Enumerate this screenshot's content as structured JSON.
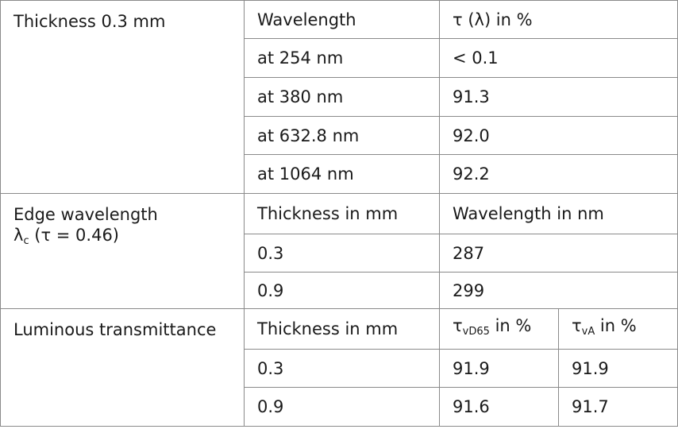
{
  "sections": [
    {
      "label": "Thickness 0.3 mm",
      "header": {
        "col1": "Wavelength",
        "col2": "τ (λ) in %"
      },
      "rows": [
        {
          "col1": "at 254 nm",
          "col2": "< 0.1"
        },
        {
          "col1": "at 380 nm",
          "col2": "91.3"
        },
        {
          "col1": "at 632.8 nm",
          "col2": "92.0"
        },
        {
          "col1": "at 1064 nm",
          "col2": "92.2"
        }
      ]
    },
    {
      "label_line1": "Edge wavelength",
      "label_line2_sym": "λ",
      "label_line2_sub": "c",
      "label_line2_rest": " (τ = 0.46)",
      "header": {
        "col1": "Thickness in mm",
        "col2": "Wavelength in nm"
      },
      "rows": [
        {
          "col1": "0.3",
          "col2": "287"
        },
        {
          "col1": "0.9",
          "col2": "299"
        }
      ]
    },
    {
      "label": "Luminous transmittance",
      "header": {
        "col1": "Thickness in mm",
        "col2_sym": "τ",
        "col2_sub": "vD65",
        "col2_rest": " in %",
        "col3_sym": "τ",
        "col3_sub": "vA",
        "col3_rest": " in %"
      },
      "rows": [
        {
          "col1": "0.3",
          "col2": "91.9",
          "col3": "91.9"
        },
        {
          "col1": "0.9",
          "col2": "91.6",
          "col3": "91.7"
        }
      ]
    }
  ]
}
